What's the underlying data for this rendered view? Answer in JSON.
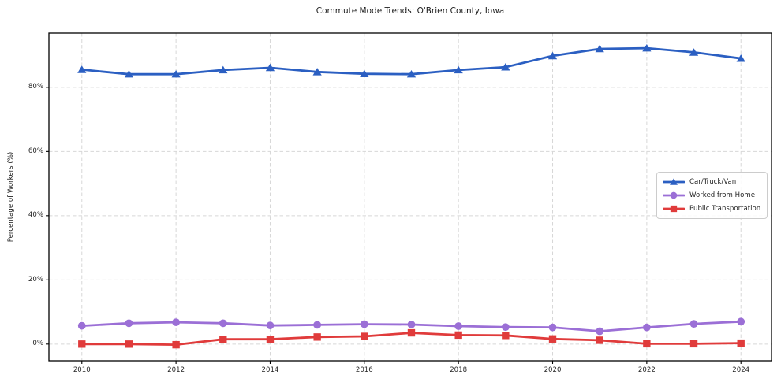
{
  "chart_data": {
    "type": "line",
    "title": "Commute Mode Trends: O'Brien County, Iowa",
    "xlabel": "",
    "ylabel": "Percentage of Workers (%)",
    "x": [
      2010,
      2011,
      2012,
      2013,
      2014,
      2015,
      2016,
      2017,
      2018,
      2019,
      2020,
      2021,
      2022,
      2023,
      2024
    ],
    "series": [
      {
        "name": "Car/Truck/Van",
        "color": "#2b5fc2",
        "marker": "triangle",
        "values": [
          85.5,
          84.1,
          84.1,
          85.4,
          86.1,
          84.8,
          84.2,
          84.1,
          85.4,
          86.3,
          89.8,
          92.0,
          92.2,
          90.9,
          89.0
        ]
      },
      {
        "name": "Worked from Home",
        "color": "#9b6fd6",
        "marker": "circle",
        "values": [
          5.7,
          6.5,
          6.8,
          6.5,
          5.8,
          6.0,
          6.2,
          6.1,
          5.6,
          5.3,
          5.2,
          4.0,
          5.2,
          6.3,
          7.0
        ]
      },
      {
        "name": "Public Transportation",
        "color": "#e03b3b",
        "marker": "square",
        "values": [
          0.0,
          0.0,
          -0.2,
          1.5,
          1.5,
          2.2,
          2.4,
          3.5,
          2.8,
          2.7,
          1.6,
          1.2,
          0.1,
          0.1,
          0.3
        ]
      }
    ],
    "xticks": [
      2010,
      2012,
      2014,
      2016,
      2018,
      2020,
      2022,
      2024
    ],
    "yticks": [
      0,
      20,
      40,
      60,
      80
    ],
    "ytick_suffix": "%",
    "xlim": [
      2009.3,
      2024.65
    ],
    "ylim": [
      -5.2,
      96.9
    ],
    "grid": true,
    "legend_position": "center-right",
    "grid_color": "#d7d7d7",
    "spine_color": "#000000"
  }
}
